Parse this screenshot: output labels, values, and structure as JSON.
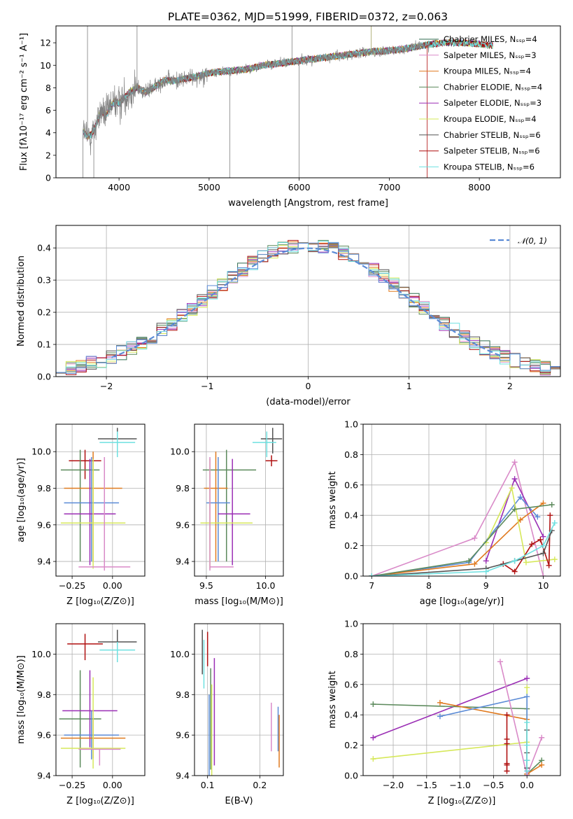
{
  "figure": {
    "title": "PLATE=0362, MJD=51999, FIBERID=0372, z=0.063"
  },
  "chart_data": [
    {
      "id": "spectrum",
      "type": "line",
      "xlabel": "wavelength [Angstrom, rest frame]",
      "ylabel": "Flux [fλ10⁻¹⁷ erg cm⁻² s⁻¹ A⁻¹]",
      "xlim": [
        3300,
        8900
      ],
      "ylim": [
        0,
        13.5
      ],
      "xticks": [
        4000,
        5000,
        6000,
        7000,
        8000
      ],
      "yticks": [
        0,
        2,
        4,
        6,
        8,
        10,
        12
      ],
      "legend_loc": "right",
      "continuum": {
        "x": [
          3600,
          3650,
          3700,
          3750,
          3800,
          3850,
          3900,
          3950,
          4000,
          4100,
          4200,
          4300,
          4400,
          4500,
          4600,
          4800,
          5000,
          5200,
          5400,
          5600,
          5800,
          6000,
          6200,
          6400,
          6600,
          6800,
          7000,
          7200,
          7400,
          7600,
          7800,
          8000,
          8200,
          8400,
          8600
        ],
        "y": [
          4.2,
          3.6,
          3.9,
          4.8,
          6.0,
          5.5,
          6.2,
          6.8,
          6.6,
          7.5,
          8.0,
          7.6,
          8.1,
          8.7,
          8.6,
          8.9,
          9.3,
          9.5,
          9.6,
          10.0,
          10.2,
          10.4,
          10.6,
          10.8,
          11.0,
          11.2,
          11.3,
          11.5,
          11.8,
          12.0,
          12.0,
          11.9,
          11.7,
          11.5,
          11.2
        ]
      },
      "data_x_range": [
        3600,
        7450
      ],
      "series": [
        {
          "name": "Chabrier MILES, Nₛₛₚ=4",
          "color": "#2f6b4f"
        },
        {
          "name": "Salpeter MILES, Nₛₛₚ=3",
          "color": "#d98ac8"
        },
        {
          "name": "Kroupa MILES, Nₛₛₚ=4",
          "color": "#e07a1f"
        },
        {
          "name": "Chabrier ELODIE, Nₛₛₚ=4",
          "color": "#5c8a5c"
        },
        {
          "name": "Salpeter ELODIE, Nₛₛₚ=3",
          "color": "#9b2fb5"
        },
        {
          "name": "Kroupa ELODIE, Nₛₛₚ=4",
          "color": "#d6e85a"
        },
        {
          "name": "Chabrier STELIB, Nₛₛₚ=6",
          "color": "#555555"
        },
        {
          "name": "Salpeter STELIB, Nₛₛₚ=6",
          "color": "#b01010"
        },
        {
          "name": "Kroupa STELIB, Nₛₛₚ=6",
          "color": "#6ee0e0"
        }
      ],
      "data_color": "#808080"
    },
    {
      "id": "residuals",
      "type": "line",
      "xlabel": "(data-model)/error",
      "ylabel": "Normed distribution",
      "xlim": [
        -2.5,
        2.5
      ],
      "ylim": [
        0,
        0.47
      ],
      "xticks": [
        -2,
        -1,
        0,
        1,
        2
      ],
      "yticks": [
        0.0,
        0.1,
        0.2,
        0.3,
        0.4
      ],
      "grid": true,
      "legend_loc": "top-right",
      "gaussian": {
        "name": "𝒩(0, 1)",
        "color": "#5b8bd6",
        "mu": 0,
        "sigma": 1
      },
      "bin_width": 0.1,
      "histogram_colors": [
        "#2f6b4f",
        "#d98ac8",
        "#e07a1f",
        "#5c8a5c",
        "#9b2fb5",
        "#d6e85a",
        "#555555",
        "#b01010",
        "#6ee0e0",
        "#5b8bd6"
      ]
    },
    {
      "id": "age_vs_Z",
      "type": "scatter",
      "xlabel": "Z [log₁₀(Z/Z⊙)]",
      "ylabel": "age  [log₁₀(age/yr)]",
      "xlim": [
        -0.35,
        0.2
      ],
      "ylim": [
        9.32,
        10.15
      ],
      "xticks": [
        -0.25,
        0.0
      ],
      "xticklabels": [
        "−0.25",
        "0.00"
      ],
      "yticks": [
        9.4,
        9.6,
        9.8,
        10.0
      ],
      "grid": true,
      "errorbars": [
        {
          "color": "#555555",
          "x": 0.03,
          "xerr": [
            0.12,
            0.12
          ],
          "y": 10.07,
          "yerr": [
            0.08,
            0.06
          ]
        },
        {
          "color": "#6ee0e0",
          "x": 0.03,
          "xerr": [
            0.11,
            0.11
          ],
          "y": 10.05,
          "yerr": [
            0.08,
            0.06
          ]
        },
        {
          "color": "#b01010",
          "x": -0.17,
          "xerr": [
            0.1,
            0.1
          ],
          "y": 9.95,
          "yerr": [
            0.1,
            0.06
          ]
        },
        {
          "color": "#5c8a5c",
          "x": -0.2,
          "xerr": [
            0.12,
            0.12
          ],
          "y": 9.9,
          "yerr": [
            0.5,
            0.11
          ]
        },
        {
          "color": "#e07a1f",
          "x": -0.12,
          "xerr": [
            0.18,
            0.18
          ],
          "y": 9.8,
          "yerr": [
            0.4,
            0.2
          ]
        },
        {
          "color": "#5b8bd6",
          "x": -0.13,
          "xerr": [
            0.17,
            0.17
          ],
          "y": 9.72,
          "yerr": [
            0.32,
            0.25
          ]
        },
        {
          "color": "#9b2fb5",
          "x": -0.14,
          "xerr": [
            0.16,
            0.16
          ],
          "y": 9.66,
          "yerr": [
            0.28,
            0.3
          ]
        },
        {
          "color": "#d6e85a",
          "x": -0.12,
          "xerr": [
            0.2,
            0.2
          ],
          "y": 9.61,
          "yerr": [
            0.25,
            0.35
          ]
        },
        {
          "color": "#d98ac8",
          "x": -0.05,
          "xerr": [
            0.16,
            0.16
          ],
          "y": 9.37,
          "yerr": [
            0.02,
            0.6
          ]
        }
      ]
    },
    {
      "id": "age_vs_mass",
      "type": "scatter",
      "xlabel": "mass [log₁₀(M/M⊙)]",
      "ylabel": "",
      "xlim": [
        9.4,
        10.15
      ],
      "ylim": [
        9.32,
        10.15
      ],
      "xticks": [
        9.5,
        10.0
      ],
      "xticklabels": [
        "9.5",
        "10.0"
      ],
      "yticks": [
        9.4,
        9.6,
        9.8,
        10.0
      ],
      "grid": true,
      "errorbars": [
        {
          "color": "#555555",
          "x": 10.06,
          "xerr": [
            0.1,
            0.08
          ],
          "y": 10.07,
          "yerr": [
            0.08,
            0.06
          ]
        },
        {
          "color": "#6ee0e0",
          "x": 10.01,
          "xerr": [
            0.12,
            0.08
          ],
          "y": 10.05,
          "yerr": [
            0.08,
            0.06
          ]
        },
        {
          "color": "#b01010",
          "x": 10.05,
          "xerr": [
            0.05,
            0.05
          ],
          "y": 9.95,
          "yerr": [
            0.03,
            0.03
          ]
        },
        {
          "color": "#5c8a5c",
          "x": 9.67,
          "xerr": [
            0.2,
            0.25
          ],
          "y": 9.9,
          "yerr": [
            0.5,
            0.11
          ]
        },
        {
          "color": "#e07a1f",
          "x": 9.58,
          "xerr": [
            0.1,
            0.1
          ],
          "y": 9.8,
          "yerr": [
            0.4,
            0.2
          ]
        },
        {
          "color": "#5b8bd6",
          "x": 9.6,
          "xerr": [
            0.1,
            0.1
          ],
          "y": 9.72,
          "yerr": [
            0.32,
            0.25
          ]
        },
        {
          "color": "#9b2fb5",
          "x": 9.72,
          "xerr": [
            0.12,
            0.15
          ],
          "y": 9.66,
          "yerr": [
            0.28,
            0.3
          ]
        },
        {
          "color": "#d6e85a",
          "x": 9.53,
          "xerr": [
            0.08,
            0.36
          ],
          "y": 9.61,
          "yerr": [
            0.25,
            0.35
          ]
        },
        {
          "color": "#d98ac8",
          "x": 9.53,
          "xerr": [
            0.0,
            0.2
          ],
          "y": 9.37,
          "yerr": [
            0.02,
            0.6
          ]
        }
      ]
    },
    {
      "id": "weight_vs_age",
      "type": "line",
      "xlabel": "age  [log₁₀(age/yr)]",
      "ylabel": "mass weight",
      "xlim": [
        6.85,
        10.3
      ],
      "ylim": [
        0,
        1
      ],
      "xticks": [
        7,
        8,
        9,
        10
      ],
      "yticks": [
        0.0,
        0.2,
        0.4,
        0.6,
        0.8,
        1.0
      ],
      "grid": true,
      "series": [
        {
          "color": "#d98ac8",
          "x": [
            7.0,
            8.8,
            9.5,
            10.0
          ],
          "y": [
            0.0,
            0.25,
            0.75,
            0.0
          ]
        },
        {
          "color": "#9b2fb5",
          "x": [
            9.0,
            9.5,
            10.0
          ],
          "y": [
            0.1,
            0.64,
            0.26
          ]
        },
        {
          "color": "#5b8bd6",
          "x": [
            7.0,
            8.7,
            9.6,
            9.9
          ],
          "y": [
            0.0,
            0.09,
            0.52,
            0.39
          ]
        },
        {
          "color": "#e07a1f",
          "x": [
            7.0,
            8.8,
            9.6,
            10.0
          ],
          "y": [
            0.0,
            0.08,
            0.37,
            0.48
          ]
        },
        {
          "color": "#d6e85a",
          "x": [
            9.0,
            9.45,
            9.7,
            10.2
          ],
          "y": [
            0.22,
            0.58,
            0.09,
            0.11
          ]
        },
        {
          "color": "#5c8a5c",
          "x": [
            7.0,
            8.7,
            9.5,
            10.15
          ],
          "y": [
            0.0,
            0.1,
            0.44,
            0.47
          ]
        },
        {
          "color": "#b01010",
          "x": [
            9.3,
            9.5,
            9.8,
            9.95,
            10.1,
            10.12
          ],
          "y": [
            0.08,
            0.03,
            0.21,
            0.24,
            0.07,
            0.4
          ]
        },
        {
          "color": "#555555",
          "x": [
            7.0,
            9.0,
            9.5,
            10.0,
            10.15
          ],
          "y": [
            0.0,
            0.05,
            0.1,
            0.15,
            0.3
          ]
        },
        {
          "color": "#6ee0e0",
          "x": [
            7.0,
            9.0,
            9.5,
            10.0,
            10.2
          ],
          "y": [
            0.0,
            0.03,
            0.1,
            0.2,
            0.35
          ]
        }
      ]
    },
    {
      "id": "mass_vs_Z",
      "type": "scatter",
      "xlabel": "Z [log₁₀(Z/Z⊙)]",
      "ylabel": "mass [log₁₀(M/M⊙)]",
      "xlim": [
        -0.35,
        0.2
      ],
      "ylim": [
        9.4,
        10.15
      ],
      "xticks": [
        -0.25,
        0.0
      ],
      "xticklabels": [
        "−0.25",
        "0.00"
      ],
      "yticks": [
        9.4,
        9.6,
        9.8,
        10.0
      ],
      "grid": true,
      "errorbars": [
        {
          "color": "#555555",
          "x": 0.03,
          "xerr": [
            0.12,
            0.12
          ],
          "y": 10.06,
          "yerr": [
            0.1,
            0.06
          ]
        },
        {
          "color": "#6ee0e0",
          "x": 0.03,
          "xerr": [
            0.11,
            0.11
          ],
          "y": 10.02,
          "yerr": [
            0.06,
            0.04
          ]
        },
        {
          "color": "#b01010",
          "x": -0.17,
          "xerr": [
            0.11,
            0.11
          ],
          "y": 10.05,
          "yerr": [
            0.08,
            0.05
          ]
        },
        {
          "color": "#5c8a5c",
          "x": -0.2,
          "xerr": [
            0.13,
            0.13
          ],
          "y": 9.68,
          "yerr": [
            0.24,
            0.24
          ]
        },
        {
          "color": "#9b2fb5",
          "x": -0.14,
          "xerr": [
            0.17,
            0.17
          ],
          "y": 9.72,
          "yerr": [
            0.18,
            0.2
          ]
        },
        {
          "color": "#5b8bd6",
          "x": -0.13,
          "xerr": [
            0.17,
            0.17
          ],
          "y": 9.6,
          "yerr": [
            0.12,
            0.12
          ]
        },
        {
          "color": "#e07a1f",
          "x": -0.12,
          "xerr": [
            0.2,
            0.2
          ],
          "y": 9.585,
          "yerr": [
            0.1,
            0.1
          ]
        },
        {
          "color": "#d6e85a",
          "x": -0.12,
          "xerr": [
            0.2,
            0.2
          ],
          "y": 9.535,
          "yerr": [
            0.1,
            0.35
          ]
        },
        {
          "color": "#d98ac8",
          "x": -0.08,
          "xerr": [
            0.13,
            0.13
          ],
          "y": 9.53,
          "yerr": [
            0.08,
            0.0
          ]
        }
      ]
    },
    {
      "id": "mass_vs_EBV",
      "type": "scatter",
      "xlabel": "E(B-V)",
      "ylabel": "",
      "xlim": [
        0.075,
        0.245
      ],
      "ylim": [
        9.4,
        10.15
      ],
      "xticks": [
        0.1,
        0.2
      ],
      "xticklabels": [
        "0.1",
        "0.2"
      ],
      "yticks": [
        9.4,
        9.6,
        9.8,
        10.0
      ],
      "grid": true,
      "errorbars": [
        {
          "color": "#555555",
          "x": 0.09,
          "xerr": [
            0,
            0
          ],
          "y": 10.02,
          "yerr": [
            0.12,
            0.1
          ]
        },
        {
          "color": "#6ee0e0",
          "x": 0.093,
          "xerr": [
            0,
            0
          ],
          "y": 9.95,
          "yerr": [
            0.12,
            0.12
          ]
        },
        {
          "color": "#b01010",
          "x": 0.1,
          "xerr": [
            0,
            0
          ],
          "y": 10.04,
          "yerr": [
            0.1,
            0.07
          ]
        },
        {
          "color": "#5b8bd6",
          "x": 0.103,
          "xerr": [
            0,
            0
          ],
          "y": 9.6,
          "yerr": [
            0.2,
            0.2
          ]
        },
        {
          "color": "#5c8a5c",
          "x": 0.106,
          "xerr": [
            0,
            0
          ],
          "y": 9.68,
          "yerr": [
            0.25,
            0.25
          ]
        },
        {
          "color": "#d6e85a",
          "x": 0.108,
          "xerr": [
            0,
            0
          ],
          "y": 9.55,
          "yerr": [
            0.15,
            0.3
          ]
        },
        {
          "color": "#9b2fb5",
          "x": 0.113,
          "xerr": [
            0,
            0
          ],
          "y": 9.75,
          "yerr": [
            0.3,
            0.23
          ]
        },
        {
          "color": "#d98ac8",
          "x": 0.222,
          "xerr": [
            0,
            0
          ],
          "y": 9.64,
          "yerr": [
            0.12,
            0.12
          ]
        },
        {
          "color": "#5b8bd6",
          "x": 0.235,
          "xerr": [
            0,
            0
          ],
          "y": 9.62,
          "yerr": [
            0.1,
            0.12
          ]
        },
        {
          "color": "#e07a1f",
          "x": 0.237,
          "xerr": [
            0,
            0
          ],
          "y": 9.58,
          "yerr": [
            0.14,
            0.12
          ]
        }
      ]
    },
    {
      "id": "weight_vs_Z",
      "type": "line",
      "xlabel": "Z [log₁₀(Z/Z⊙)]",
      "ylabel": "mass weight",
      "xlim": [
        -2.45,
        0.5
      ],
      "ylim": [
        0,
        1
      ],
      "xticks": [
        -2.0,
        -1.5,
        -1.0,
        -0.5,
        0.0
      ],
      "xticklabels": [
        "−2.0",
        "−1.5",
        "−1.0",
        "−0.5",
        "0.0"
      ],
      "yticks": [
        0.0,
        0.2,
        0.4,
        0.6,
        0.8,
        1.0
      ],
      "grid": true,
      "series": [
        {
          "color": "#9b2fb5",
          "x": [
            -2.3,
            0.0
          ],
          "y": [
            0.25,
            0.64
          ]
        },
        {
          "color": "#5c8a5c",
          "x": [
            -2.3,
            0.0,
            0.0,
            0.22
          ],
          "y": [
            0.47,
            0.44,
            0.01,
            0.1
          ]
        },
        {
          "color": "#d6e85a",
          "x": [
            -2.3,
            0.0,
            0.0
          ],
          "y": [
            0.11,
            0.22,
            0.58
          ]
        },
        {
          "color": "#e07a1f",
          "x": [
            -1.3,
            0.0,
            0.0,
            0.22
          ],
          "y": [
            0.48,
            0.37,
            0.01,
            0.07
          ]
        },
        {
          "color": "#5b8bd6",
          "x": [
            -1.3,
            0.0,
            0.0,
            0.0
          ],
          "y": [
            0.39,
            0.52,
            0.05,
            0.0
          ]
        },
        {
          "color": "#d98ac8",
          "x": [
            -0.4,
            0.0,
            0.22
          ],
          "y": [
            0.75,
            0.0,
            0.25
          ]
        },
        {
          "color": "#b01010",
          "x": [
            -0.3,
            -0.3,
            -0.3,
            -0.3,
            -0.3,
            -0.3
          ],
          "y": [
            0.4,
            0.24,
            0.21,
            0.08,
            0.07,
            0.03
          ]
        },
        {
          "color": "#555555",
          "x": [
            0.0,
            0.0,
            0.0,
            0.0
          ],
          "y": [
            0.3,
            0.15,
            0.1,
            0.05
          ]
        },
        {
          "color": "#6ee0e0",
          "x": [
            0.0,
            0.0,
            0.0,
            0.0
          ],
          "y": [
            0.35,
            0.2,
            0.1,
            0.03
          ]
        }
      ]
    }
  ]
}
